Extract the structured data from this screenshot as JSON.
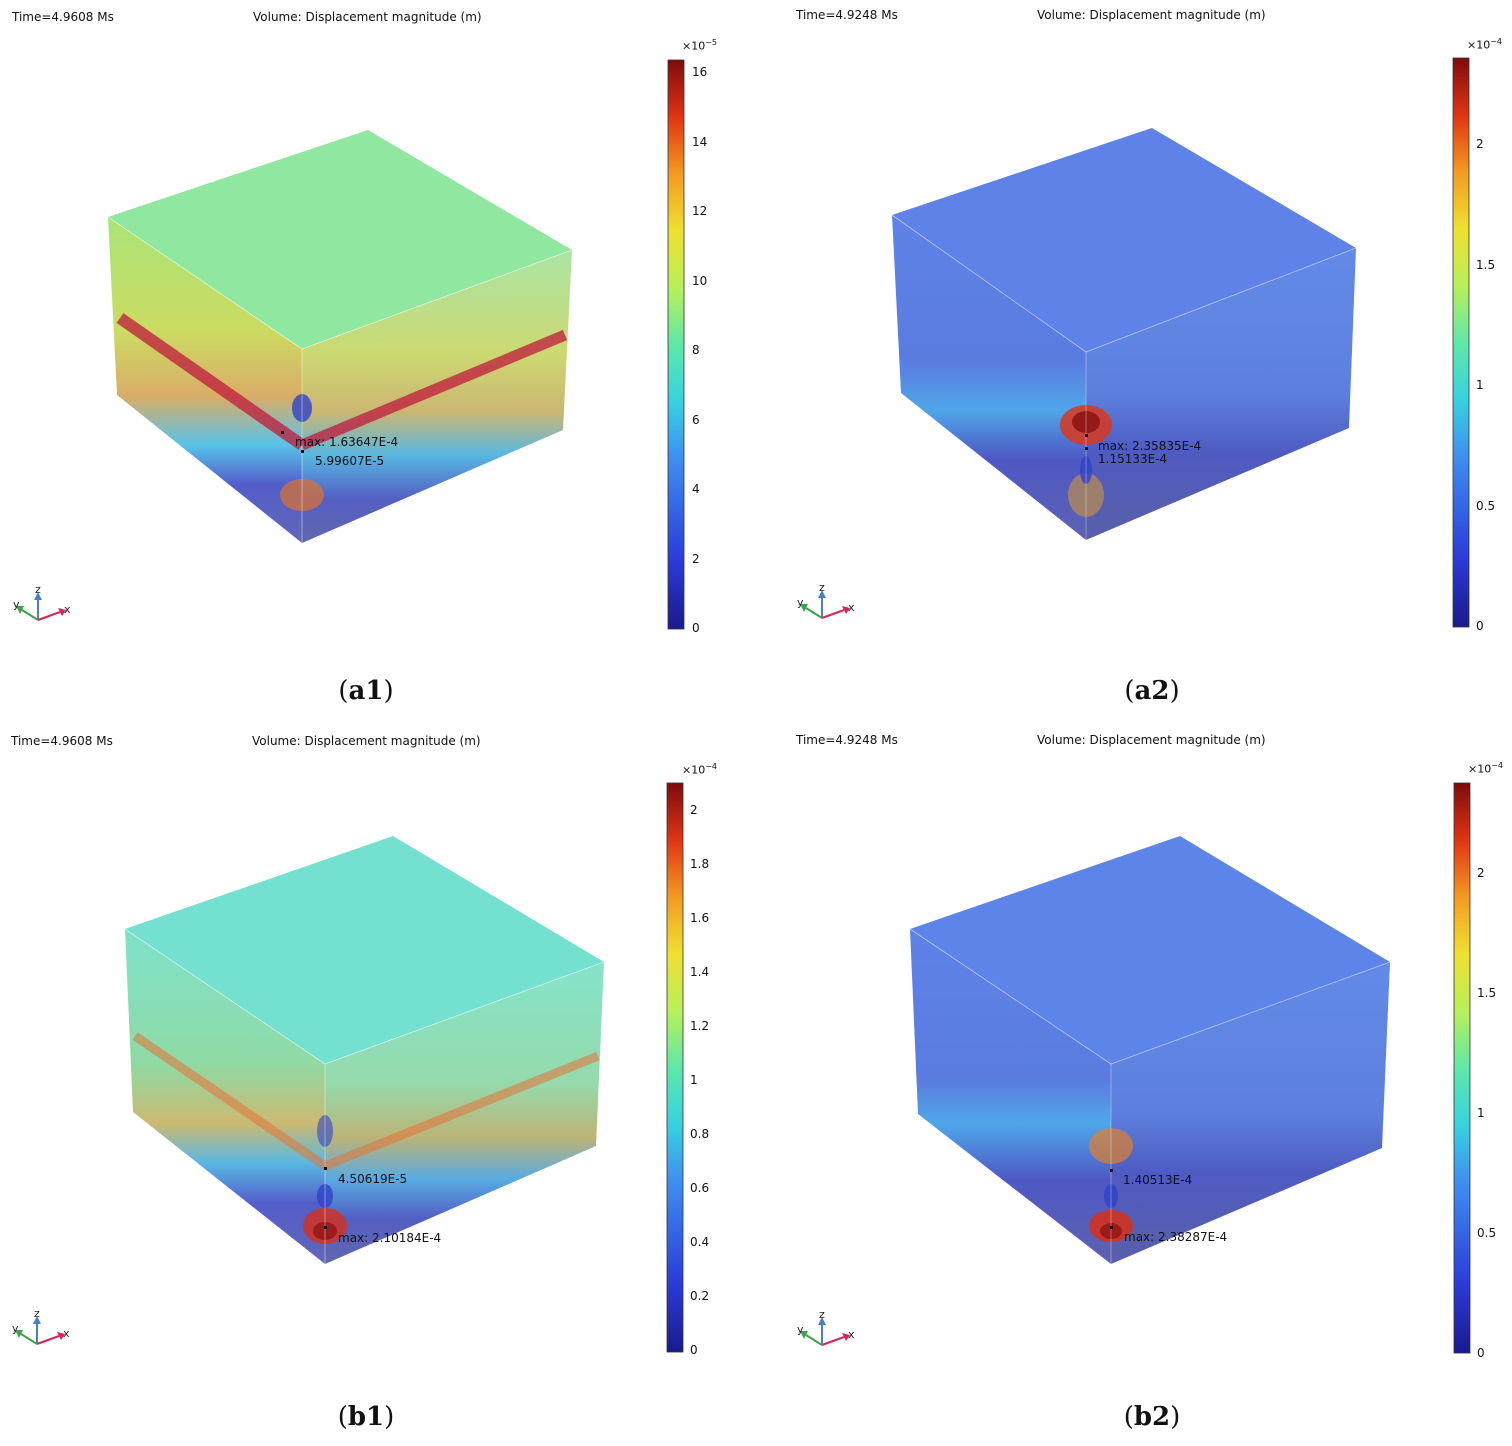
{
  "panels": [
    {
      "id": "a1",
      "time_label": "Time=4.9608 Ms",
      "plot_title": "Volume: Displacement magnitude (m)",
      "caption": "a1",
      "colorbar": {
        "multiplier_base": "×10",
        "multiplier_exp": "−5",
        "ticks": [
          "16",
          "14",
          "12",
          "10",
          "8",
          "6",
          "4",
          "2",
          "0"
        ],
        "min": 0,
        "max": 16.36
      },
      "annotations": [
        {
          "text": "max: 1.63647E-4"
        },
        {
          "text": "5.99607E-5"
        }
      ],
      "axes": {
        "x": "x",
        "y": "y",
        "z": "z"
      },
      "top_color": "#8fe7a0"
    },
    {
      "id": "a2",
      "time_label": "Time=4.9248 Ms",
      "plot_title": "Volume: Displacement magnitude (m)",
      "caption": "a2",
      "colorbar": {
        "multiplier_base": "×10",
        "multiplier_exp": "−4",
        "ticks": [
          "2",
          "1.5",
          "1",
          "0.5",
          "0"
        ],
        "min": 0,
        "max": 2.36
      },
      "annotations": [
        {
          "text": "max: 2.35835E-4"
        },
        {
          "text": "1.15133E-4"
        }
      ],
      "axes": {
        "x": "x",
        "y": "y",
        "z": "z"
      },
      "top_color": "#5f82e8"
    },
    {
      "id": "b1",
      "time_label": "Time=4.9608 Ms",
      "plot_title": "Volume: Displacement magnitude (m)",
      "caption": "b1",
      "colorbar": {
        "multiplier_base": "×10",
        "multiplier_exp": "−4",
        "ticks": [
          "2",
          "1.8",
          "1.6",
          "1.4",
          "1.2",
          "1",
          "0.8",
          "0.6",
          "0.4",
          "0.2",
          "0"
        ],
        "min": 0,
        "max": 2.1
      },
      "annotations": [
        {
          "text": "4.50619E-5"
        },
        {
          "text": "max: 2.10184E-4"
        }
      ],
      "axes": {
        "x": "x",
        "y": "y",
        "z": "z"
      },
      "top_color": "#74e0cf"
    },
    {
      "id": "b2",
      "time_label": "Time=4.9248 Ms",
      "plot_title": "Volume: Displacement magnitude (m)",
      "caption": "b2",
      "colorbar": {
        "multiplier_base": "×10",
        "multiplier_exp": "−4",
        "ticks": [
          "2",
          "1.5",
          "1",
          "0.5",
          "0"
        ],
        "min": 0,
        "max": 2.38
      },
      "annotations": [
        {
          "text": "1.40513E-4"
        },
        {
          "text": "max: 2.38287E-4"
        }
      ],
      "axes": {
        "x": "x",
        "y": "y",
        "z": "z"
      },
      "top_color": "#5d84e8"
    }
  ]
}
